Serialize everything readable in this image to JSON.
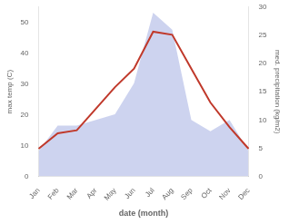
{
  "chart_data": {
    "type": "line",
    "xlabel": "date (month)",
    "ylabel": "max temp (C)",
    "y2label": "med. precipitation (kg/m2)",
    "categories": [
      "Jan",
      "Feb",
      "Mar",
      "Apr",
      "May",
      "Jun",
      "Jul",
      "Aug",
      "Sep",
      "Oct",
      "Nov",
      "Dec"
    ],
    "series": [
      {
        "type": "area",
        "axis": "y2",
        "color": "#b8c0e8",
        "values": [
          4.5,
          9,
          9,
          10,
          11,
          16.5,
          29,
          26,
          10,
          8,
          10,
          4.5
        ]
      },
      {
        "type": "line",
        "color": "#c0392b",
        "values": [
          9,
          14,
          15,
          22,
          29,
          35,
          47,
          46,
          35,
          24,
          16,
          9
        ]
      }
    ],
    "ylim": [
      0,
      55
    ],
    "yticks": [
      0,
      10,
      20,
      30,
      40,
      50
    ],
    "y2lim": [
      0,
      30
    ],
    "y2ticks": [
      0,
      5,
      10,
      15,
      20,
      25,
      30
    ],
    "grid": false
  }
}
